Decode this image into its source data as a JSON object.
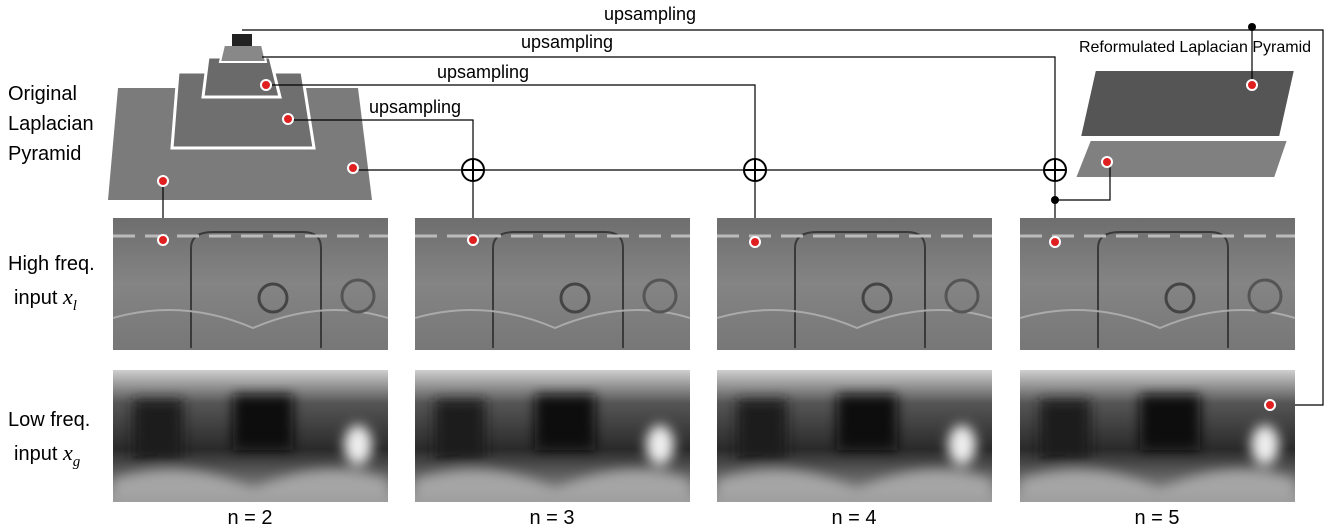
{
  "pyramid_label": [
    "Original",
    "Laplacian",
    "Pyramid"
  ],
  "upsampling": [
    "upsampling",
    "upsampling",
    "upsampling",
    "upsampling"
  ],
  "reformulated_label": "Reformulated Laplacian Pyramid",
  "rows": [
    {
      "label": "High freq.",
      "input": "input",
      "var": "x",
      "sub": "l"
    },
    {
      "label": "Low freq.",
      "input": "input",
      "var": "x",
      "sub": "g"
    }
  ],
  "columns": [
    "n = 2",
    "n = 3",
    "n = 4",
    "n = 5"
  ]
}
